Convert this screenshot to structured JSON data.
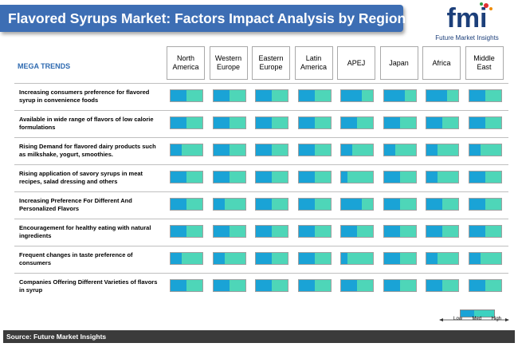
{
  "title": "Flavored Syrups Market: Factors Impact Analysis by Region",
  "logo": {
    "letters": "fmi",
    "tagline": "Future Market Insights"
  },
  "table": {
    "header_label": "MEGA TRENDS",
    "regions": [
      "North America",
      "Western Europe",
      "Eastern Europe",
      "Latin America",
      "APEJ",
      "Japan",
      "Africa",
      "Middle East"
    ],
    "rows": [
      {
        "label": "Increasing consumers preference for flavored syrup in convenience foods",
        "impact": [
          0.5,
          0.5,
          0.5,
          0.5,
          0.65,
          0.65,
          0.65,
          0.5
        ]
      },
      {
        "label": "Available in wide range of flavors of low calorie formulations",
        "impact": [
          0.5,
          0.5,
          0.5,
          0.5,
          0.5,
          0.5,
          0.5,
          0.5
        ]
      },
      {
        "label": "Rising Demand for flavored dairy products such as milkshake, yogurt, smoothies.",
        "impact": [
          0.35,
          0.5,
          0.5,
          0.5,
          0.35,
          0.35,
          0.35,
          0.35
        ]
      },
      {
        "label": "Rising application of savory syrups in meat recipes, salad dressing and others",
        "impact": [
          0.5,
          0.5,
          0.5,
          0.5,
          0.2,
          0.5,
          0.35,
          0.5
        ]
      },
      {
        "label": "Increasing Preference For Different And Personalized Flavors",
        "impact": [
          0.5,
          0.35,
          0.5,
          0.5,
          0.65,
          0.5,
          0.5,
          0.5
        ]
      },
      {
        "label": "Encouragement for healthy eating with natural ingredients",
        "impact": [
          0.5,
          0.5,
          0.5,
          0.5,
          0.5,
          0.5,
          0.5,
          0.5
        ]
      },
      {
        "label": "Frequent changes in taste preference of consumers",
        "impact": [
          0.35,
          0.35,
          0.5,
          0.5,
          0.2,
          0.5,
          0.35,
          0.35
        ]
      },
      {
        "label": "Companies Offering Different Varieties of flavors in syrup",
        "impact": [
          0.5,
          0.5,
          0.5,
          0.5,
          0.5,
          0.5,
          0.5,
          0.5
        ]
      }
    ]
  },
  "legend": {
    "low": "Low",
    "med": "Med",
    "high": "High"
  },
  "footer": {
    "source": "Source: Future Market Insights"
  },
  "colors": {
    "title_bar": "#3d6eb4",
    "impact_fill": "#1aa3d6",
    "impact_bg": "#4ed6b8",
    "footer_bg": "#3b3b3b",
    "logo_blue": "#1c3f7a"
  }
}
